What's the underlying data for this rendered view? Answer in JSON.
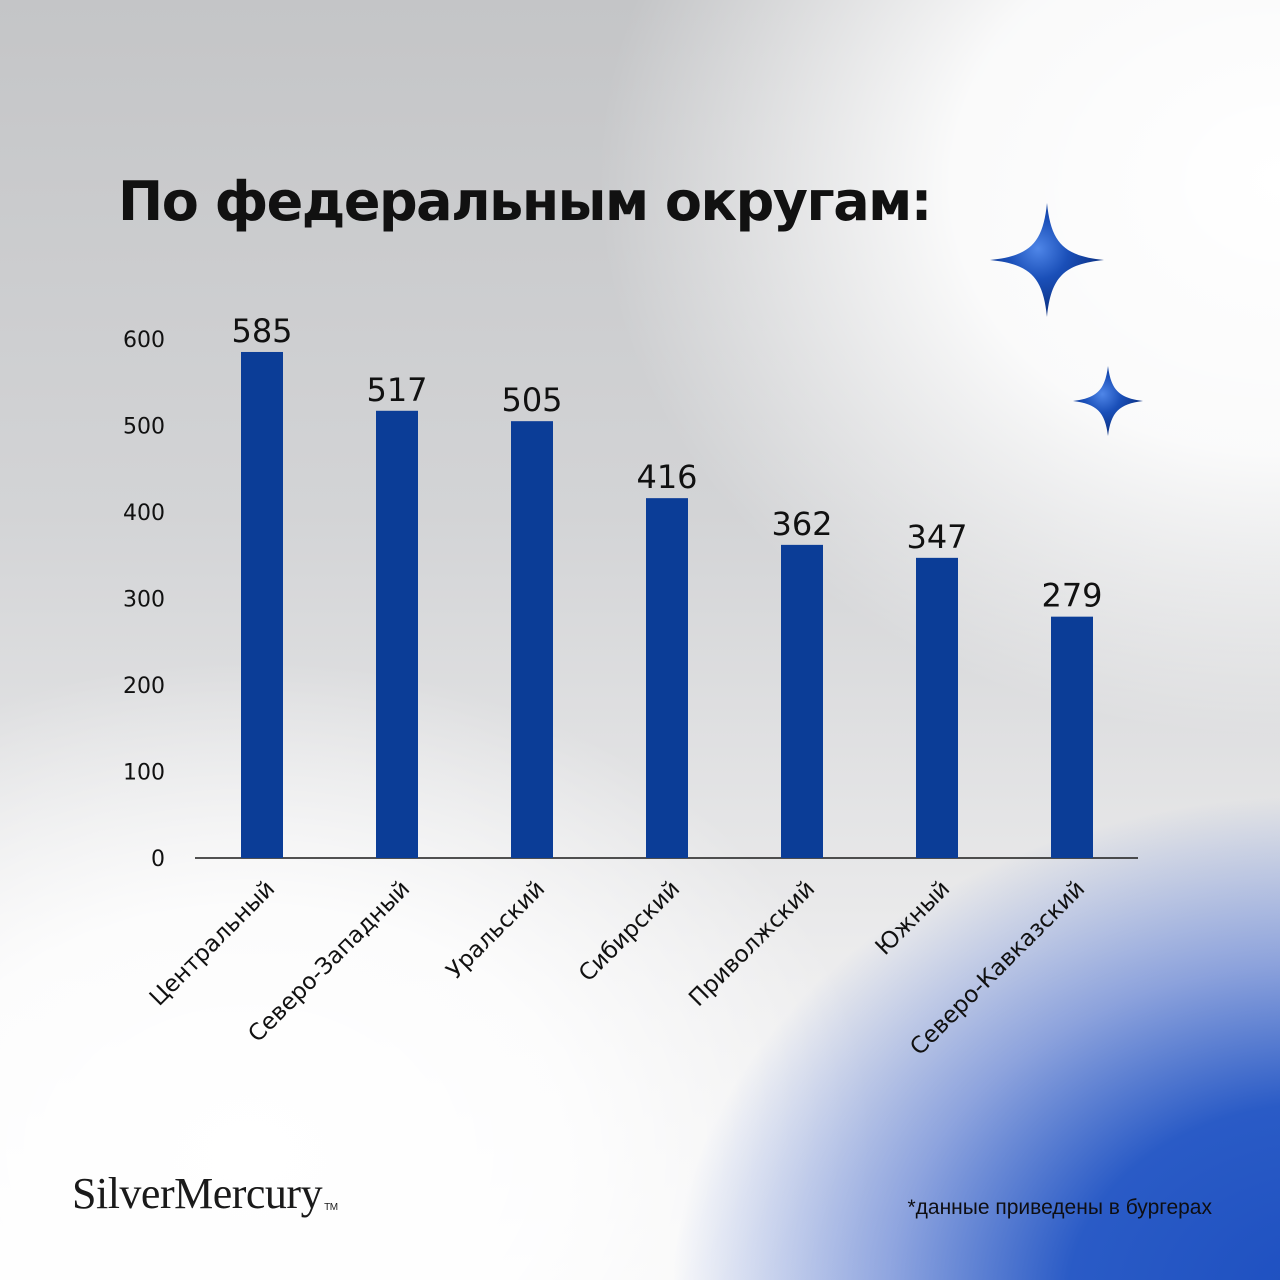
{
  "title": "По федеральным округам:",
  "footnote": "*данные приведены в бургерах",
  "brand": {
    "name": "SilverMercury",
    "mark": "TM"
  },
  "decorations": [
    "sparkle-star-icon",
    "sparkle-star-icon"
  ],
  "colors": {
    "bar": "#0b3d97",
    "axis": "#1a1a1a",
    "text": "#111111"
  },
  "chart_data": {
    "type": "bar",
    "categories": [
      "Центральный",
      "Северо-Западный",
      "Уральский",
      "Сибирский",
      "Приволжский",
      "Южный",
      "Северо-Кавказский"
    ],
    "values": [
      585,
      517,
      505,
      416,
      362,
      347,
      279
    ],
    "data_labels": [
      "585",
      "517",
      "505",
      "416",
      "362",
      "347",
      "279"
    ],
    "yticks": [
      0,
      100,
      200,
      300,
      400,
      500,
      600
    ],
    "ylim": [
      0,
      600
    ],
    "grid": false,
    "legend": "none",
    "xlabel": "",
    "ylabel": ""
  }
}
